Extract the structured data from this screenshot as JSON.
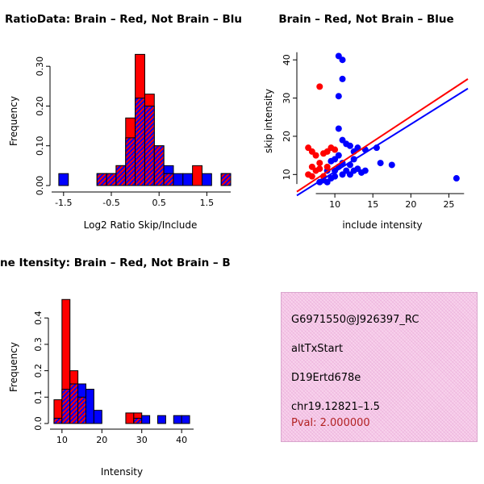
{
  "figure": {
    "bg_color": "#ffffff"
  },
  "colors": {
    "brain_red": "#ff0000",
    "not_brain_blue": "#0000ff",
    "axis_black": "#000000",
    "overlap_style": "red-blue diagonal crosshatch (appears purple)"
  },
  "chart_data": [
    {
      "type": "bar",
      "subtype": "overlaid-histogram",
      "title": "RatioData: Brain – Red, Not Brain – Blu",
      "xlabel": "Log2 Ratio Skip/Include",
      "ylabel": "Frequency",
      "xlim": [
        -1.75,
        2.0
      ],
      "ylim": [
        0,
        0.345
      ],
      "xticks": [
        -1.5,
        -0.5,
        0.5,
        1.5
      ],
      "xtick_labels": [
        "-1.5",
        "-0.5",
        "0.5",
        "1.5"
      ],
      "yticks": [
        0.0,
        0.1,
        0.2,
        0.3
      ],
      "ytick_labels": [
        "0.00",
        "0.10",
        "0.20",
        "0.30"
      ],
      "bin_start": -1.6,
      "bin_width": 0.2,
      "series": [
        {
          "name": "Brain",
          "color": "#ff0000",
          "heights": [
            0,
            0,
            0,
            0,
            0.03,
            0.03,
            0.05,
            0.17,
            0.33,
            0.23,
            0.1,
            0.03,
            0,
            0,
            0.05,
            0,
            0,
            0.03
          ]
        },
        {
          "name": "Not Brain",
          "color": "#0000ff",
          "heights": [
            0.03,
            0,
            0,
            0,
            0.03,
            0.03,
            0.05,
            0.12,
            0.22,
            0.2,
            0.1,
            0.05,
            0.03,
            0.03,
            0,
            0.03,
            0,
            0.03
          ]
        }
      ]
    },
    {
      "type": "scatter",
      "title": "Brain – Red, Not Brain – Blue",
      "xlabel": "include intensity",
      "ylabel": "skip intensity",
      "xlim": [
        5,
        27.5
      ],
      "ylim": [
        5,
        43
      ],
      "xticks": [
        10,
        15,
        20,
        25
      ],
      "yticks": [
        10,
        20,
        30,
        40
      ],
      "series": [
        {
          "name": "Brain",
          "color": "#ff0000",
          "points": [
            [
              6.5,
              17
            ],
            [
              7,
              16
            ],
            [
              7.5,
              15
            ],
            [
              7,
              12
            ],
            [
              7.5,
              11
            ],
            [
              8,
              13
            ],
            [
              8,
              11.5
            ],
            [
              8.5,
              15.5
            ],
            [
              9,
              16
            ],
            [
              9,
              12
            ],
            [
              9.5,
              17
            ],
            [
              10,
              16.5
            ],
            [
              6.5,
              10
            ],
            [
              7,
              9.5
            ],
            [
              8.5,
              9.5
            ],
            [
              8,
              33
            ]
          ]
        },
        {
          "name": "Not Brain",
          "color": "#0000ff",
          "points": [
            [
              10.5,
              41
            ],
            [
              11,
              40
            ],
            [
              11,
              35
            ],
            [
              10.5,
              30.5
            ],
            [
              10.5,
              22
            ],
            [
              11,
              19
            ],
            [
              11.5,
              18
            ],
            [
              12,
              17.5
            ],
            [
              12.5,
              16
            ],
            [
              13,
              17
            ],
            [
              14,
              16.5
            ],
            [
              15.5,
              17
            ],
            [
              8,
              8
            ],
            [
              9,
              8
            ],
            [
              9.5,
              9
            ],
            [
              10,
              9.5
            ],
            [
              10,
              11
            ],
            [
              10.5,
              12
            ],
            [
              11,
              10
            ],
            [
              11,
              13
            ],
            [
              11.5,
              11
            ],
            [
              12,
              10
            ],
            [
              12,
              12.5
            ],
            [
              12.5,
              11
            ],
            [
              13,
              11.5
            ],
            [
              13.5,
              10.5
            ],
            [
              14,
              11
            ],
            [
              16,
              13
            ],
            [
              17.5,
              12.5
            ],
            [
              26,
              9
            ],
            [
              8.5,
              8.5
            ],
            [
              9,
              11
            ],
            [
              9.5,
              13.5
            ],
            [
              10,
              14
            ],
            [
              10.5,
              15
            ],
            [
              12.5,
              14
            ]
          ]
        }
      ],
      "fit_lines": [
        {
          "name": "Brain fit",
          "color": "#ff0000",
          "from": [
            5,
            5.5
          ],
          "to": [
            27.5,
            35
          ]
        },
        {
          "name": "Not Brain fit",
          "color": "#0000ff",
          "from": [
            5,
            4.5
          ],
          "to": [
            27.5,
            32.5
          ]
        }
      ]
    },
    {
      "type": "bar",
      "subtype": "overlaid-histogram",
      "title": "ne Itensity: Brain – Red, Not Brain – B",
      "xlabel": "Intensity",
      "ylabel": "Frequency",
      "xlim": [
        7,
        43
      ],
      "ylim": [
        0,
        0.48
      ],
      "xticks": [
        10,
        20,
        30,
        40
      ],
      "xtick_labels": [
        "10",
        "20",
        "30",
        "40"
      ],
      "yticks": [
        0.0,
        0.1,
        0.2,
        0.3,
        0.4
      ],
      "ytick_labels": [
        "0.0",
        "0.1",
        "0.2",
        "0.3",
        "0.4"
      ],
      "bin_start": 8,
      "bin_width": 2,
      "series": [
        {
          "name": "Brain",
          "color": "#ff0000",
          "heights": [
            0.09,
            0.47,
            0.2,
            0.1,
            0,
            0,
            0,
            0,
            0,
            0.04,
            0.04,
            0,
            0,
            0,
            0,
            0,
            0
          ]
        },
        {
          "name": "Not Brain",
          "color": "#0000ff",
          "heights": [
            0.02,
            0.13,
            0.15,
            0.15,
            0.13,
            0.05,
            0,
            0,
            0,
            0,
            0.02,
            0.03,
            0,
            0.03,
            0,
            0.03,
            0.03
          ]
        }
      ]
    }
  ],
  "info_box": {
    "bg_color": "#f8d2ec",
    "border_color": "#d9a6cd",
    "lines": [
      {
        "text": "G6971550@J926397_RC",
        "color": "#000000"
      },
      {
        "text": "altTxStart",
        "color": "#000000"
      },
      {
        "text": "D19Ertd678e",
        "color": "#000000"
      },
      {
        "text": "chr19.12821–1.5",
        "color": "#000000"
      },
      {
        "text": "Pval: 2.000000",
        "color": "#b22222"
      }
    ]
  }
}
